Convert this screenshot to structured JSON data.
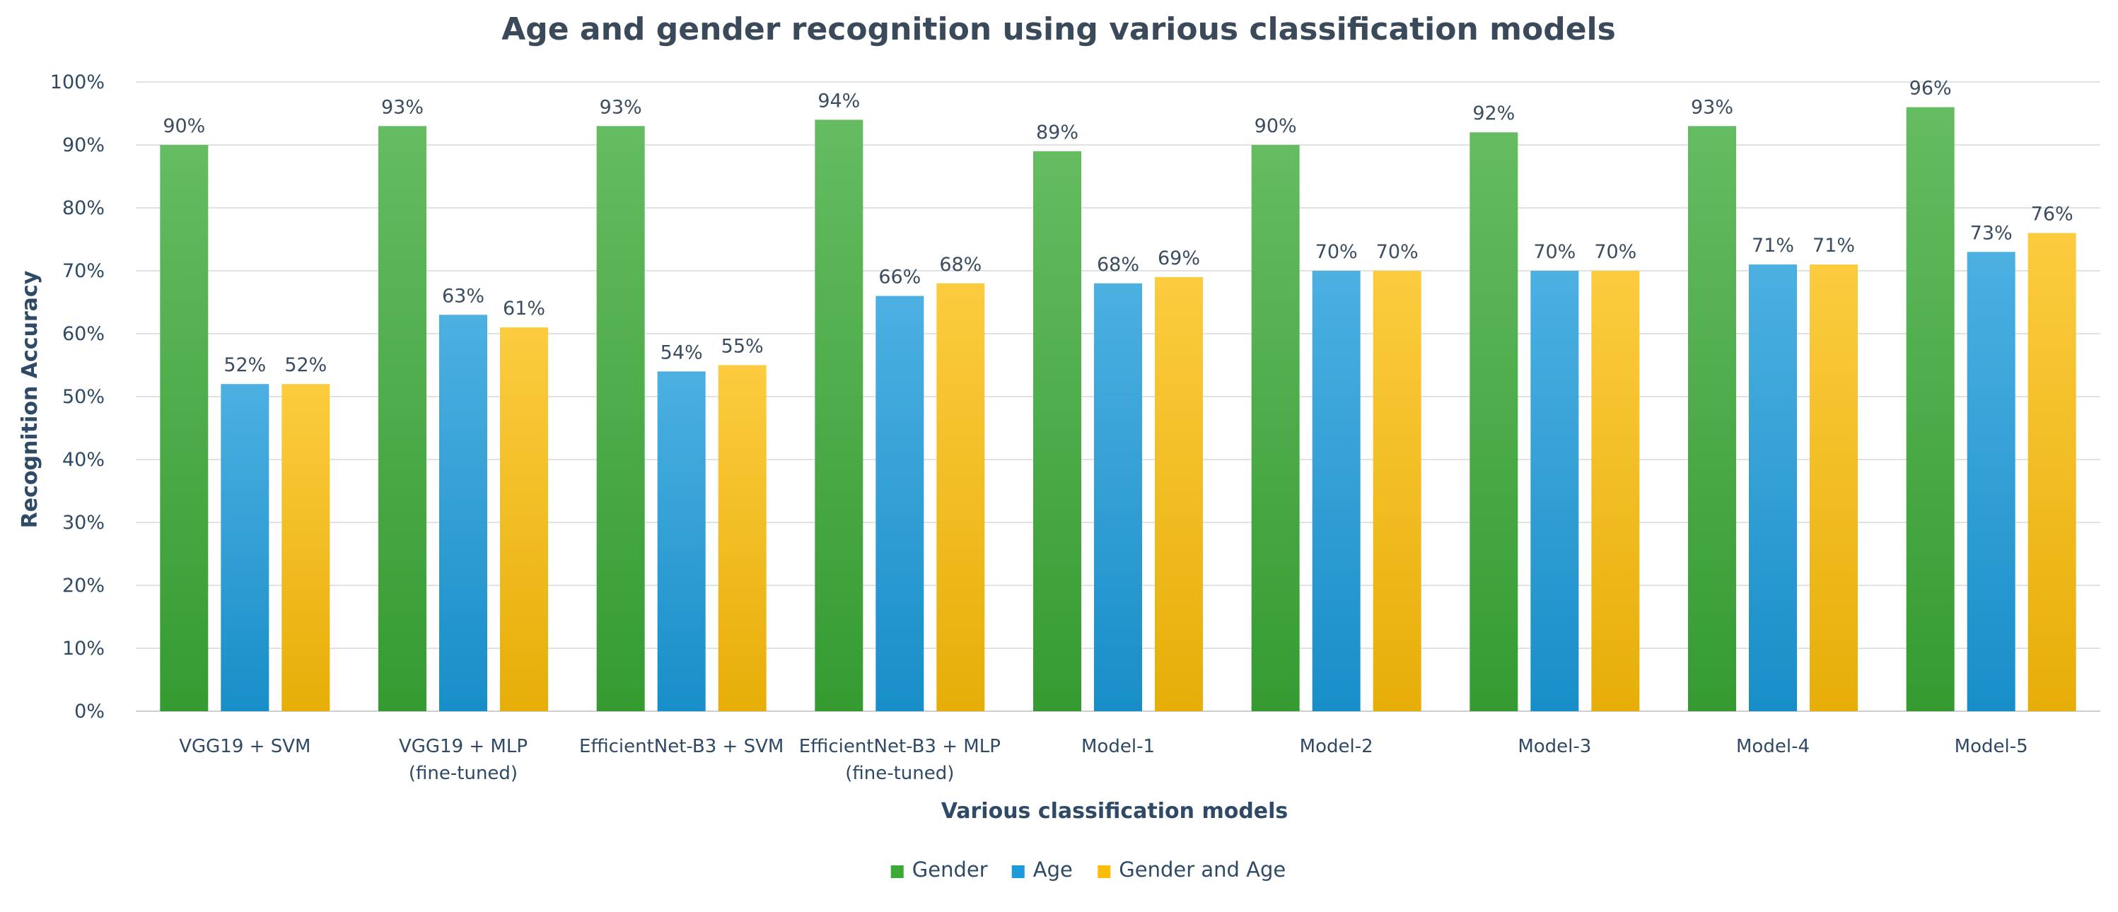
{
  "chart_data": {
    "type": "bar",
    "title": "Age and gender recognition using various classification models",
    "xlabel": "Various classification models",
    "ylabel": "Recognition Accuracy",
    "ylim": [
      0,
      100
    ],
    "yticks": [
      "0%",
      "10%",
      "20%",
      "30%",
      "40%",
      "50%",
      "60%",
      "70%",
      "80%",
      "90%",
      "100%"
    ],
    "grid": true,
    "legend_position": "bottom",
    "categories": [
      [
        "VGG19 + SVM"
      ],
      [
        "VGG19 + MLP",
        "(fine-tuned)"
      ],
      [
        "EfficientNet-B3 + SVM"
      ],
      [
        "EfficientNet-B3 + MLP",
        "(fine-tuned)"
      ],
      [
        "Model-1"
      ],
      [
        "Model-2"
      ],
      [
        "Model-3"
      ],
      [
        "Model-4"
      ],
      [
        "Model-5"
      ]
    ],
    "series": [
      {
        "name": "Gender",
        "color": "#3aa935",
        "values": [
          90,
          93,
          93,
          94,
          89,
          90,
          92,
          93,
          96
        ]
      },
      {
        "name": "Age",
        "color": "#1a9ad9",
        "values": [
          52,
          63,
          54,
          66,
          68,
          70,
          70,
          71,
          73
        ]
      },
      {
        "name": "Gender and Age",
        "color": "#fbbd09",
        "values": [
          52,
          61,
          55,
          68,
          69,
          70,
          70,
          71,
          76
        ]
      }
    ],
    "value_suffix": "%"
  }
}
